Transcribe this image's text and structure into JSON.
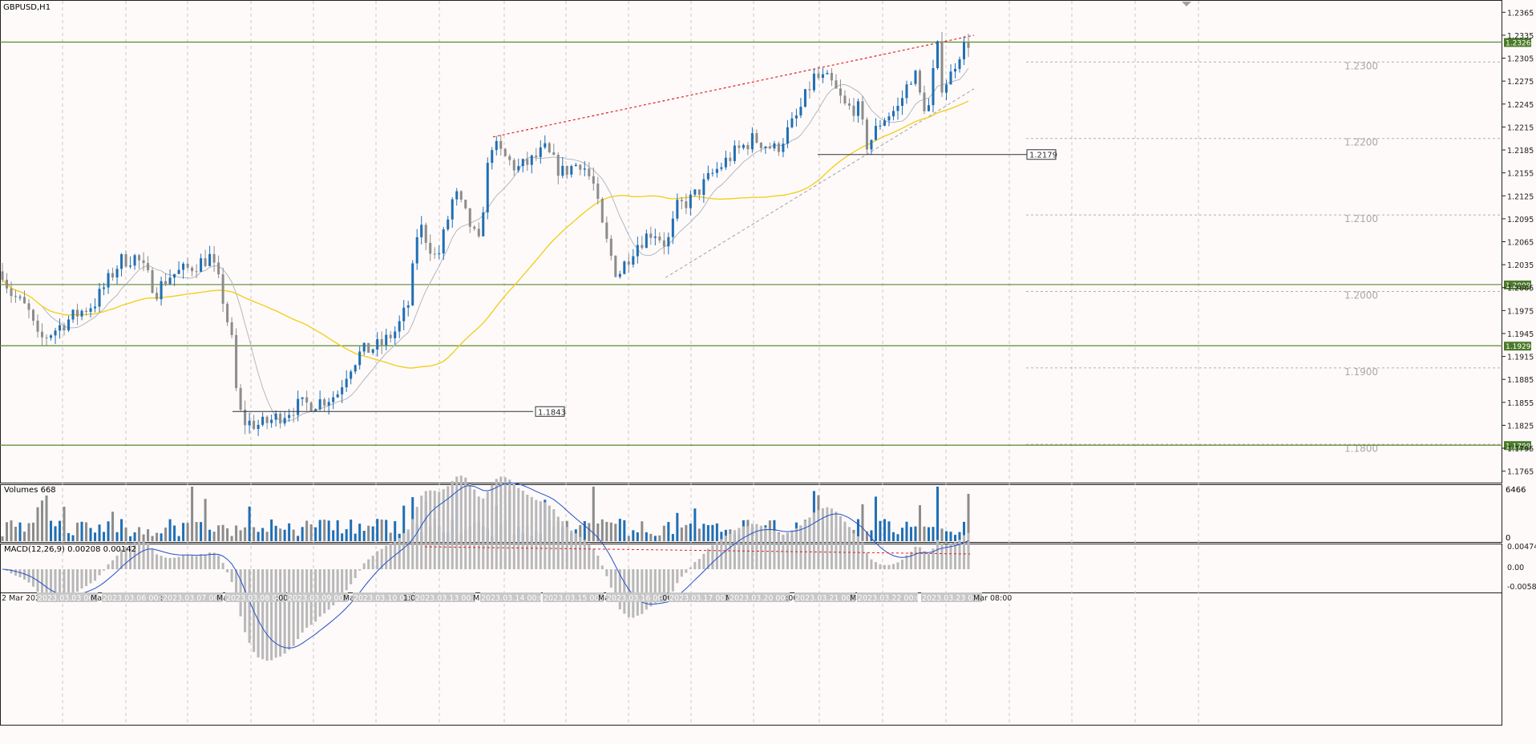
{
  "symbol_label": "GBPUSD,H1",
  "colors": {
    "background": "#fffafa",
    "up": "#1f6fb4",
    "down": "#8c8c8c",
    "ma_fast": "#b0b8c0",
    "ma_slow": "#f0d020",
    "level_line": "#5a8a2a",
    "level_tag_bg": "#4a7a2a",
    "resistance_trend": "#e02020",
    "support_trend": "#a0a0a0",
    "macd_hist": "#b8b8b8",
    "macd_signal": "#2050c8"
  },
  "price_axis": {
    "min": 1.175,
    "max": 1.238,
    "ticks": [
      "1.2365",
      "1.2335",
      "1.2305",
      "1.2275",
      "1.2245",
      "1.2215",
      "1.2185",
      "1.2155",
      "1.2125",
      "1.2095",
      "1.2065",
      "1.2035",
      "1.2005",
      "1.1975",
      "1.1945",
      "1.1915",
      "1.1885",
      "1.1855",
      "1.1825",
      "1.1795",
      "1.1765"
    ]
  },
  "horizontal_levels": [
    {
      "price": 1.2326,
      "label": "1.2326"
    },
    {
      "price": 1.2009,
      "label": "1.2009"
    },
    {
      "price": 1.1929,
      "label": "1.1929"
    },
    {
      "price": 1.1799,
      "label": "1.1799"
    }
  ],
  "round_levels": [
    {
      "price": 1.23,
      "label": "1.2300"
    },
    {
      "price": 1.22,
      "label": "1.2200"
    },
    {
      "price": 1.21,
      "label": "1.2100"
    },
    {
      "price": 1.2,
      "label": "1.2000"
    },
    {
      "price": 1.19,
      "label": "1.1900"
    },
    {
      "price": 1.18,
      "label": "1.1800"
    }
  ],
  "annotations": [
    {
      "price": 1.2179,
      "label": "1.2179"
    },
    {
      "price": 1.1843,
      "label": "1.1843"
    }
  ],
  "trend_lines": {
    "resistance": [
      {
        "bar": 0,
        "price": 1.2202
      },
      {
        "bar": 1,
        "price": 1.2335
      }
    ],
    "support": [
      {
        "bar": 0,
        "price": 1.2018
      },
      {
        "bar": 1,
        "price": 1.2265
      }
    ]
  },
  "volumes": {
    "label": "Volumes 668",
    "axis_max_label": "6466",
    "axis_min_label": "0"
  },
  "macd": {
    "label": "MACD(12,26,9) 0.00208 0.00142",
    "ticks": [
      "0.00474",
      "0.00",
      "-0.00585"
    ]
  },
  "time_axis": {
    "labels": [
      "2 Mar 2023",
      "2023.03.03 00:00",
      "Ma",
      "2023.03.06 00:00",
      ":00",
      "2023.03.07 00:00",
      "Ma",
      "2023.03.08 00:00",
      ":00",
      "2023.03.09 00:00",
      "Ma",
      "2023.03.10 00:00",
      "1:0",
      "2023.03.13 00:00",
      "Ma",
      "2023.03.14 00:00",
      "2023.03.15 00:00",
      "Ma",
      "2023.03.16 00:00",
      ":00",
      "2023.03.17 00:00",
      "M",
      "2023.03.20 00:00",
      ":00",
      "2023.03.21 00:00",
      "Ma",
      "2023.03.22 00:00",
      "2023.03.23 00:00",
      "Mar 08:00"
    ]
  },
  "chart_data": {
    "type": "candlestick",
    "symbol": "GBPUSD",
    "timeframe": "H1",
    "anchors": [
      [
        0,
        1.2035
      ],
      [
        12,
        1.2
      ],
      [
        35,
        1.1975
      ],
      [
        48,
        1.1935
      ],
      [
        62,
        1.1945
      ],
      [
        88,
        1.1965
      ],
      [
        118,
        1.1985
      ],
      [
        150,
        1.204
      ],
      [
        170,
        1.2045
      ],
      [
        195,
        1.2
      ],
      [
        210,
        1.202
      ],
      [
        235,
        1.203
      ],
      [
        262,
        1.2045
      ],
      [
        275,
        1.2005
      ],
      [
        290,
        1.193
      ],
      [
        293,
        1.188
      ],
      [
        302,
        1.183
      ],
      [
        325,
        1.1825
      ],
      [
        345,
        1.1835
      ],
      [
        370,
        1.185
      ],
      [
        395,
        1.1855
      ],
      [
        420,
        1.1865
      ],
      [
        435,
        1.19
      ],
      [
        450,
        1.192
      ],
      [
        475,
        1.193
      ],
      [
        495,
        1.195
      ],
      [
        510,
        1.1985
      ],
      [
        522,
        1.209
      ],
      [
        545,
        1.204
      ],
      [
        555,
        1.208
      ],
      [
        567,
        1.213
      ],
      [
        585,
        1.209
      ],
      [
        597,
        1.206
      ],
      [
        612,
        1.2195
      ],
      [
        625,
        1.218
      ],
      [
        645,
        1.216
      ],
      [
        662,
        1.217
      ],
      [
        680,
        1.2185
      ],
      [
        700,
        1.2155
      ],
      [
        725,
        1.217
      ],
      [
        740,
        1.214
      ],
      [
        752,
        1.208
      ],
      [
        770,
        1.202
      ],
      [
        792,
        1.206
      ],
      [
        815,
        1.208
      ],
      [
        832,
        1.206
      ],
      [
        845,
        1.211
      ],
      [
        862,
        1.212
      ],
      [
        890,
        1.2155
      ],
      [
        915,
        1.218
      ],
      [
        940,
        1.22
      ],
      [
        968,
        1.2185
      ],
      [
        995,
        1.223
      ],
      [
        1015,
        1.228
      ],
      [
        1035,
        1.2275
      ],
      [
        1055,
        1.224
      ],
      [
        1070,
        1.224
      ],
      [
        1082,
        1.219
      ],
      [
        1100,
        1.2225
      ],
      [
        1120,
        1.224
      ],
      [
        1140,
        1.229
      ],
      [
        1150,
        1.2245
      ],
      [
        1160,
        1.224
      ],
      [
        1168,
        1.233
      ],
      [
        1175,
        1.227
      ],
      [
        1185,
        1.228
      ],
      [
        1195,
        1.231
      ],
      [
        1207,
        1.2326
      ]
    ],
    "candle_count": 220,
    "ma_fast_period": 10,
    "ma_slow_period": 48
  }
}
